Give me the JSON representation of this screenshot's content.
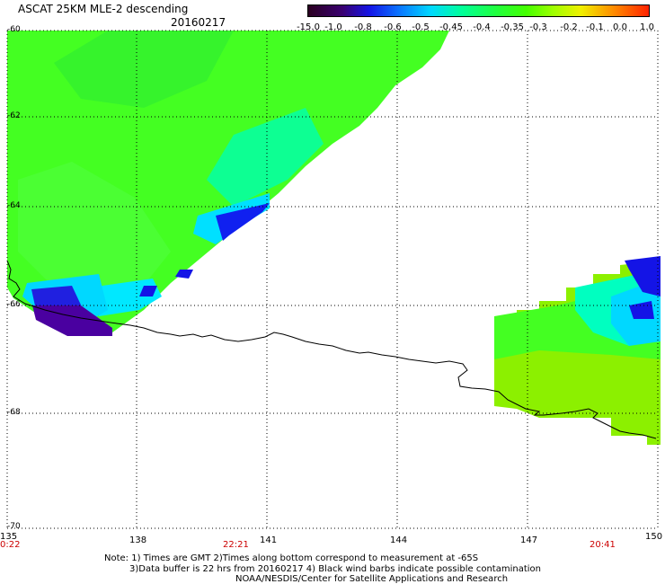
{
  "header": {
    "title": "ASCAT 25KM MLE-2 descending",
    "date": "20160217"
  },
  "colorbar": {
    "labels": [
      "-15.0",
      "-1.0",
      "-0.8",
      "-0.6",
      "-0.5",
      "-0.45",
      "-0.4",
      "-0.35",
      "-0.3",
      "-0.2",
      "-0.1",
      "0.0",
      "1.0"
    ]
  },
  "axes": {
    "lat_labels": [
      "-60",
      "-62",
      "-64",
      "-66",
      "-68",
      "-70"
    ],
    "lon_labels": [
      "135",
      "138",
      "141",
      "144",
      "147",
      "150"
    ],
    "time_labels": [
      "0:22",
      "22:21",
      "20:41"
    ]
  },
  "notes": {
    "line1": "Note: 1) Times are GMT 2)Times along bottom correspond to measurement at -65S",
    "line2": "3)Data buffer is 22 hrs from 20160217 4) Black wind barbs indicate possible contamination",
    "line3": "NOAA/NESDIS/Center for Satellite Applications and Research"
  },
  "colors": {
    "coast": "#000000",
    "grid": "#000000",
    "time_label": "#cc0000"
  }
}
